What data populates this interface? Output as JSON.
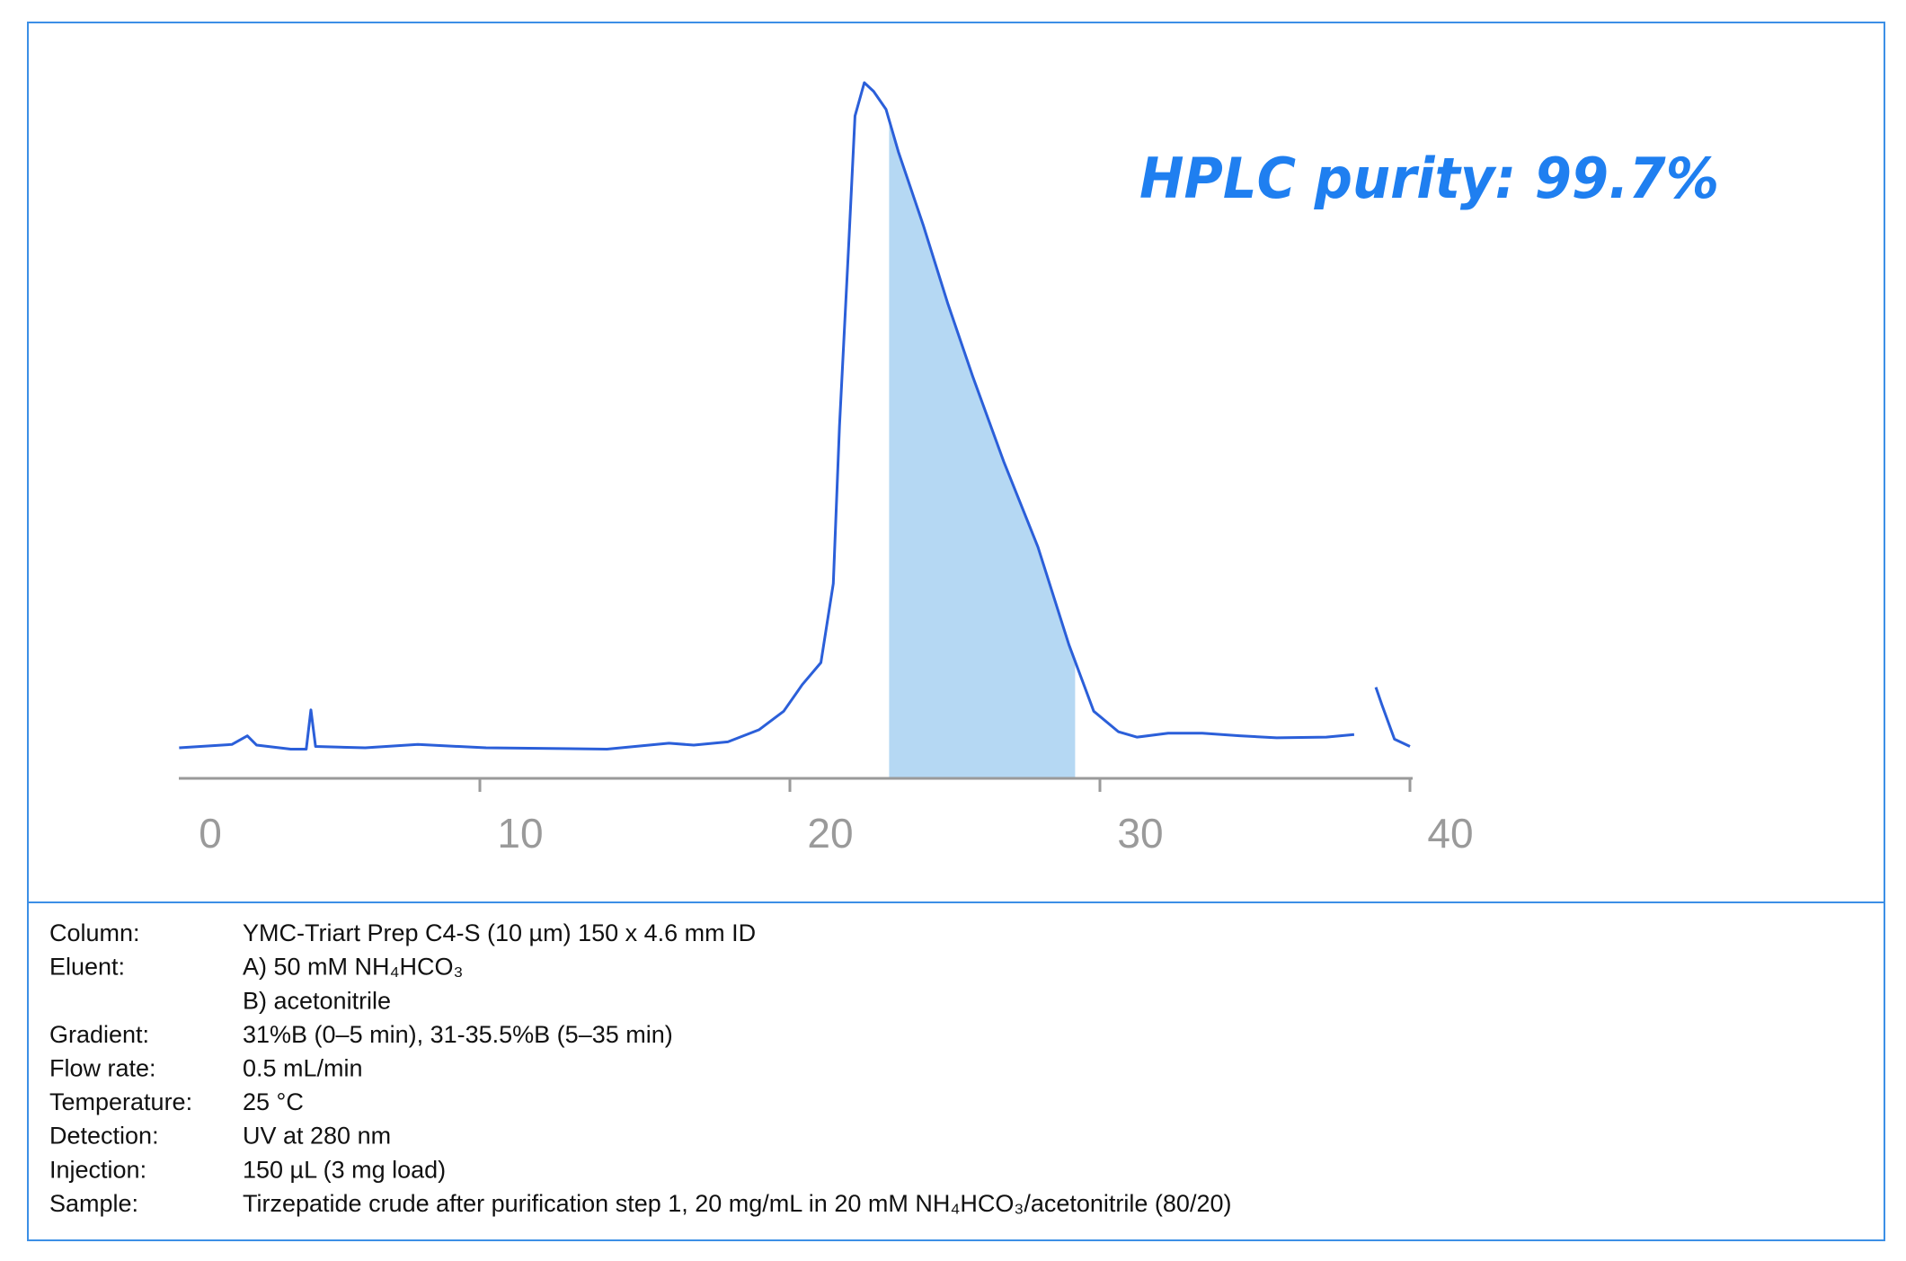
{
  "chart_data": {
    "type": "line",
    "annotation": "HPLC purity: 99.7%",
    "x": [
      0.3,
      2.0,
      2.5,
      2.8,
      3.9,
      4.4,
      4.55,
      4.7,
      6.3,
      8.0,
      10.2,
      14.1,
      16.1,
      16.9,
      18.0,
      19.0,
      19.8,
      20.4,
      21.0,
      21.4,
      21.6,
      21.9,
      22.1,
      22.4,
      22.7,
      23.1,
      23.5,
      24.3,
      25.1,
      25.9,
      26.9,
      28.0,
      29.0,
      29.8,
      30.6,
      31.2,
      32.2,
      33.3,
      34.5,
      35.7,
      37.3,
      38.2,
      38.5,
      38.9,
      39.1,
      39.5,
      40.0
    ],
    "values": [
      0,
      0.5,
      1.8,
      0.4,
      -0.2,
      -0.2,
      5.7,
      0.2,
      0,
      0.5,
      0,
      -0.2,
      0.7,
      0.4,
      0.9,
      2.7,
      5.5,
      9.5,
      12.8,
      24.7,
      48.4,
      75.9,
      95,
      100,
      98.7,
      96,
      89.6,
      78.6,
      66.7,
      55.8,
      43,
      30.2,
      15.5,
      5.5,
      2.4,
      1.6,
      2.2,
      2.2,
      1.8,
      1.5,
      1.6,
      2.0,
      null,
      9.1,
      6.4,
      1.3,
      0.2
    ],
    "color": "#2b5fd9",
    "highlight": [
      23.2,
      29.2
    ],
    "highlight_color": "#b5d8f3",
    "xlim": [
      0,
      40
    ],
    "xticks": [
      0,
      10,
      20,
      30,
      40
    ],
    "ylim": [
      -5,
      105
    ]
  },
  "conditions": [
    {
      "label": "Column:",
      "values": [
        "YMC-Triart Prep C4-S (10 µm) 150 x 4.6 mm ID"
      ]
    },
    {
      "label": "Eluent:",
      "values": [
        "A) 50 mM NH₄HCO₃",
        "B) acetonitrile"
      ]
    },
    {
      "label": "Gradient:",
      "values": [
        "31%B (0–5 min), 31-35.5%B (5–35 min)"
      ]
    },
    {
      "label": "Flow rate:",
      "values": [
        "0.5 mL/min"
      ]
    },
    {
      "label": "Temperature:",
      "values": [
        "25 °C"
      ]
    },
    {
      "label": "Detection:",
      "values": [
        "UV at 280 nm"
      ]
    },
    {
      "label": "Injection:",
      "values": [
        "150 µL (3 mg load)"
      ]
    },
    {
      "label": "Sample:",
      "values": [
        "Tirzepatide crude after purification step 1, 20 mg/mL in 20 mM NH₄HCO₃/acetonitrile (80/20)"
      ]
    }
  ]
}
